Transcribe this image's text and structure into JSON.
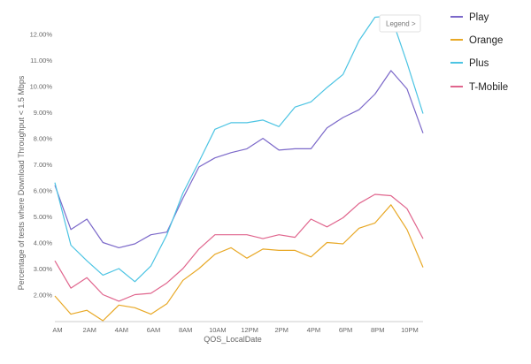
{
  "legend_button": {
    "label": "Legend",
    "icon": "chevron-right-icon",
    "glyph": ">"
  },
  "chart_data": {
    "type": "line",
    "xlabel": "QOS_LocalDate",
    "ylabel": "Percentage of tests where Download Throughput < 1.5 Mbps",
    "xlim": [
      0,
      23
    ],
    "ylim": [
      1.0,
      12.7
    ],
    "x_ticks": [
      {
        "x": 0,
        "label": "AM"
      },
      {
        "x": 2,
        "label": "2AM"
      },
      {
        "x": 4,
        "label": "4AM"
      },
      {
        "x": 6,
        "label": "6AM"
      },
      {
        "x": 8,
        "label": "8AM"
      },
      {
        "x": 10,
        "label": "10AM"
      },
      {
        "x": 12,
        "label": "12PM"
      },
      {
        "x": 14,
        "label": "2PM"
      },
      {
        "x": 16,
        "label": "4PM"
      },
      {
        "x": 18,
        "label": "6PM"
      },
      {
        "x": 20,
        "label": "8PM"
      },
      {
        "x": 22,
        "label": "10PM"
      }
    ],
    "y_ticks": [
      {
        "y": 2,
        "label": "2.00%"
      },
      {
        "y": 3,
        "label": "3.00%"
      },
      {
        "y": 4,
        "label": "4.00%"
      },
      {
        "y": 5,
        "label": "5.00%"
      },
      {
        "y": 6,
        "label": "6.00%"
      },
      {
        "y": 7,
        "label": "7.00%"
      },
      {
        "y": 8,
        "label": "8.00%"
      },
      {
        "y": 9,
        "label": "9.00%"
      },
      {
        "y": 10,
        "label": "10.00%"
      },
      {
        "y": 11,
        "label": "11.00%"
      },
      {
        "y": 12,
        "label": "12.00%"
      }
    ],
    "grid": false,
    "legend_position": "right",
    "x": [
      0,
      1,
      2,
      3,
      4,
      5,
      6,
      7,
      8,
      9,
      10,
      11,
      12,
      13,
      14,
      15,
      16,
      17,
      18,
      19,
      20,
      21,
      22,
      23
    ],
    "series": [
      {
        "name": "Play",
        "color": "#7b68c9",
        "values": [
          6.2,
          4.5,
          4.9,
          4.0,
          3.8,
          3.95,
          4.3,
          4.4,
          5.7,
          6.9,
          7.25,
          7.45,
          7.6,
          8.0,
          7.55,
          7.6,
          7.6,
          8.4,
          8.8,
          9.1,
          9.7,
          10.6,
          9.9,
          8.2
        ]
      },
      {
        "name": "Orange",
        "color": "#e8a825",
        "values": [
          1.95,
          1.25,
          1.4,
          1.0,
          1.6,
          1.5,
          1.25,
          1.65,
          2.55,
          3.0,
          3.55,
          3.8,
          3.4,
          3.75,
          3.7,
          3.7,
          3.45,
          4.0,
          3.95,
          4.55,
          4.75,
          5.45,
          4.5,
          3.05
        ]
      },
      {
        "name": "Plus",
        "color": "#4cc4e3",
        "values": [
          6.3,
          3.9,
          3.3,
          2.75,
          3.0,
          2.5,
          3.1,
          4.3,
          5.9,
          7.1,
          8.35,
          8.6,
          8.6,
          8.7,
          8.45,
          9.2,
          9.4,
          9.95,
          10.45,
          11.75,
          12.65,
          12.7,
          10.9,
          8.95
        ]
      },
      {
        "name": "T-Mobile",
        "color": "#e0658d",
        "values": [
          3.3,
          2.25,
          2.65,
          2.0,
          1.75,
          2.0,
          2.05,
          2.45,
          3.0,
          3.75,
          4.3,
          4.3,
          4.3,
          4.15,
          4.3,
          4.2,
          4.9,
          4.6,
          4.95,
          5.5,
          5.85,
          5.8,
          5.3,
          4.15
        ]
      }
    ]
  }
}
